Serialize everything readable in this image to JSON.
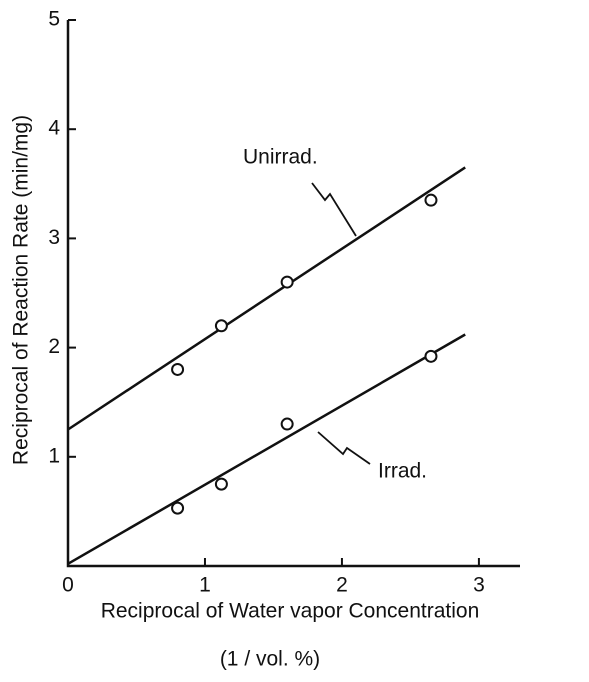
{
  "chart_data": {
    "type": "scatter",
    "x_label": [
      "Reciprocal of Water vapor Concentration",
      "(1 / vol. %)"
    ],
    "y_label": "Reciprocal of Reaction Rate (min/mg)",
    "xlim": [
      0,
      3.3
    ],
    "ylim": [
      0,
      5
    ],
    "xticks": [
      0,
      1,
      2,
      3
    ],
    "yticks": [
      1,
      2,
      3,
      4,
      5
    ],
    "color": "#111111",
    "series": [
      {
        "name": "Unirrad.",
        "x": [
          0.8,
          1.12,
          1.6,
          2.65
        ],
        "values": [
          1.8,
          2.2,
          2.6,
          3.35
        ],
        "fit": {
          "x": [
            0,
            2.9
          ],
          "values": [
            1.25,
            3.65
          ]
        }
      },
      {
        "name": "Irrad.",
        "x": [
          0.8,
          1.12,
          1.6,
          2.65
        ],
        "values": [
          0.53,
          0.75,
          1.3,
          1.92
        ],
        "fit": {
          "x": [
            0,
            2.9
          ],
          "values": [
            0.02,
            2.12
          ]
        }
      }
    ]
  }
}
